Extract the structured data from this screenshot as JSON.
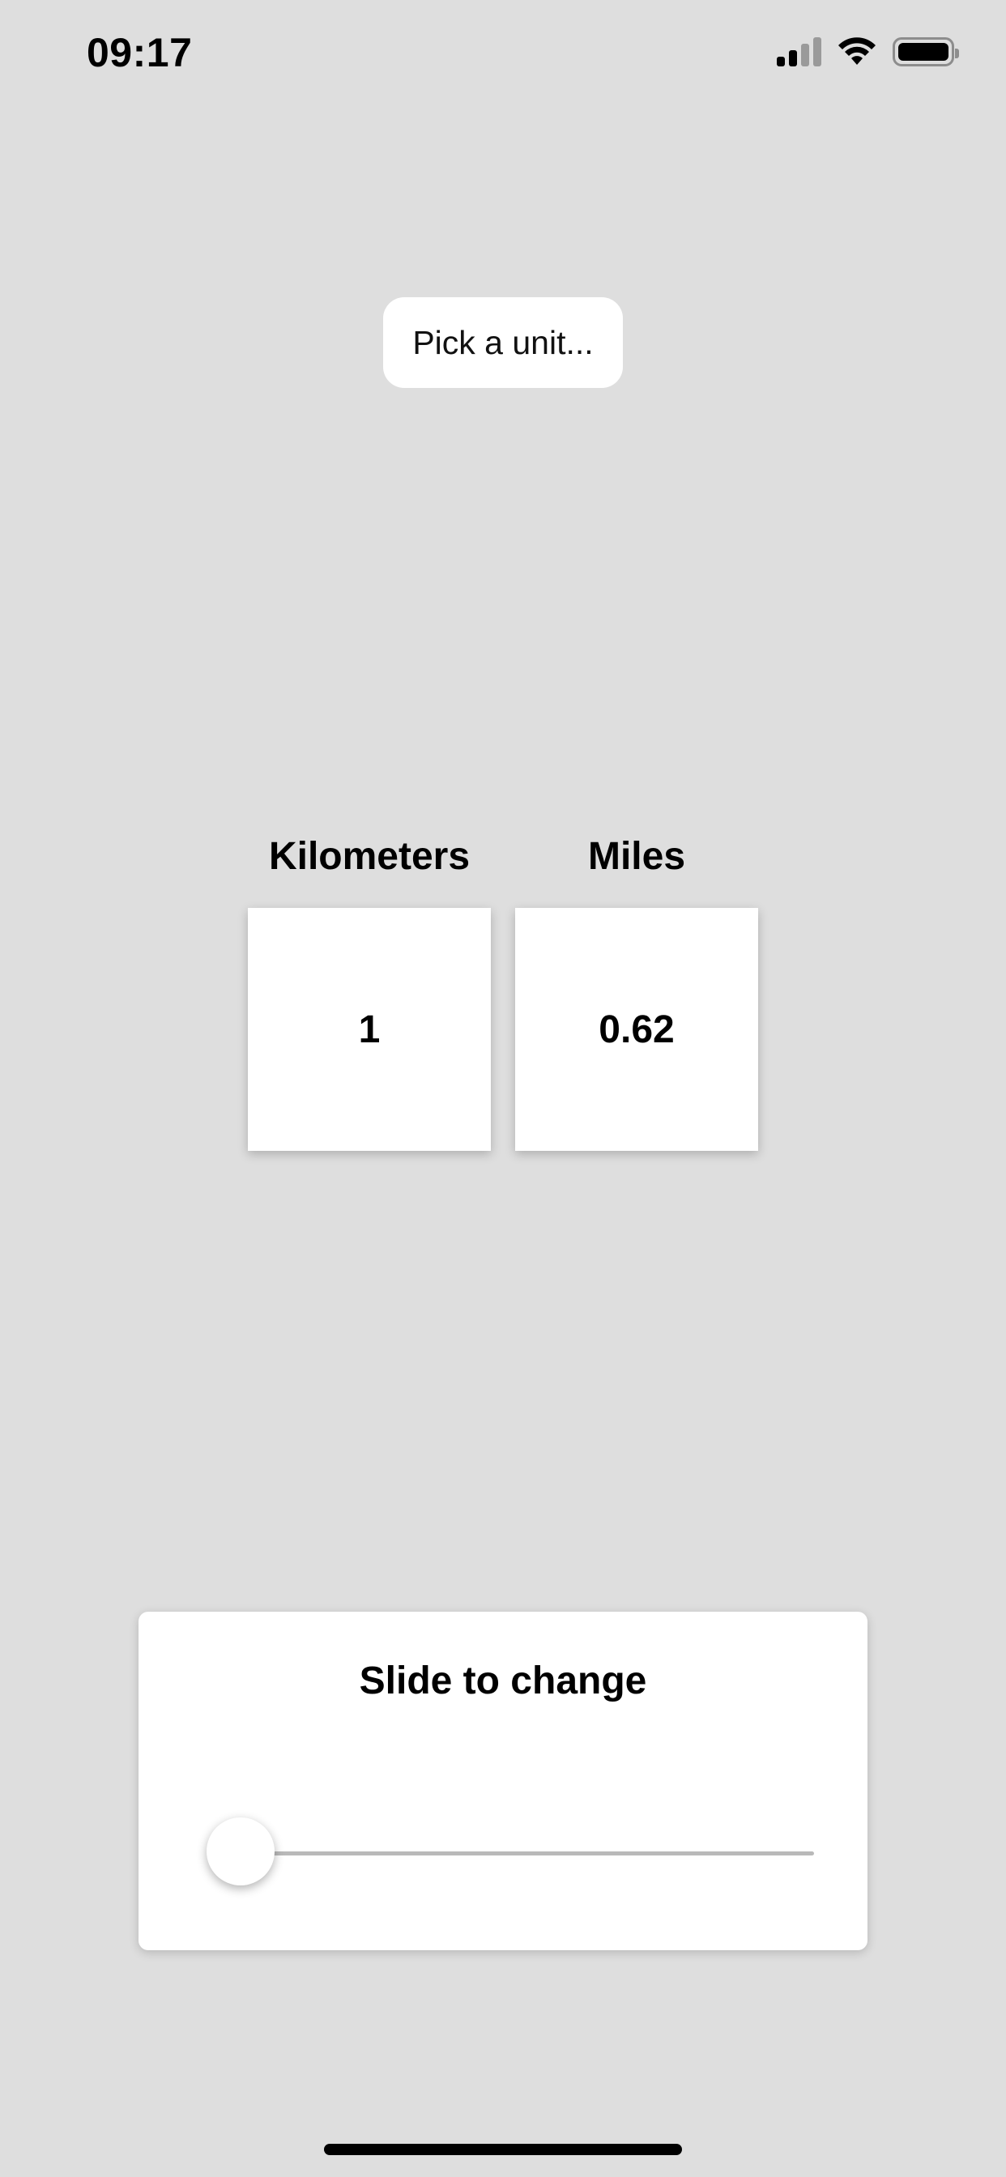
{
  "status_bar": {
    "time": "09:17",
    "icons": [
      "cellular-signal-icon",
      "wifi-icon",
      "battery-icon"
    ]
  },
  "picker": {
    "label": "Pick a unit..."
  },
  "conversion": {
    "from": {
      "unit": "Kilometers",
      "value": "1"
    },
    "to": {
      "unit": "Miles",
      "value": "0.62"
    }
  },
  "slider": {
    "title": "Slide to change",
    "position_fraction": 0.0
  },
  "colors": {
    "background": "#dedede",
    "card": "#ffffff",
    "text": "#000000",
    "track": "#b9b9b9"
  }
}
